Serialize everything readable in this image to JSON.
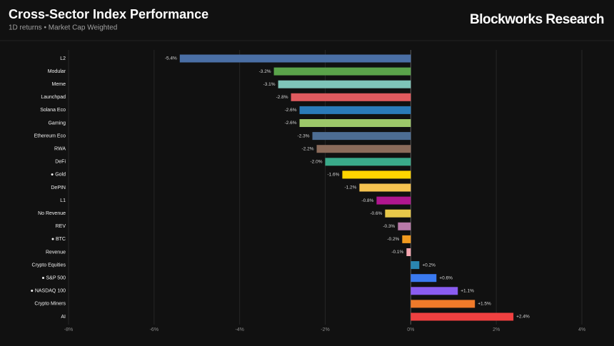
{
  "header": {
    "title": "Cross-Sector Index Performance",
    "subtitle": "1D returns • Market Cap Weighted",
    "brand": "Blockworks Research"
  },
  "chart_data": {
    "type": "bar",
    "orientation": "horizontal",
    "categories": [
      "L2",
      "Modular",
      "Meme",
      "Launchpad",
      "Solana Eco",
      "Gaming",
      "Ethereum Eco",
      "RWA",
      "DeFi",
      "● Gold",
      "DePIN",
      "L1",
      "No Revenue",
      "REV",
      "● BTC",
      "Revenue",
      "Crypto Equities",
      "● S&P 500",
      "● NASDAQ 100",
      "Crypto Miners",
      "AI"
    ],
    "values": [
      -5.4,
      -3.2,
      -3.1,
      -2.8,
      -2.6,
      -2.6,
      -2.3,
      -2.2,
      -2.0,
      -1.6,
      -1.2,
      -0.8,
      -0.6,
      -0.3,
      -0.2,
      -0.1,
      0.2,
      0.6,
      1.1,
      1.5,
      2.4
    ],
    "value_labels": [
      "-5.4%",
      "-3.2%",
      "-3.1%",
      "-2.8%",
      "-2.6%",
      "-2.6%",
      "-2.3%",
      "-2.2%",
      "-2.0%",
      "-1.6%",
      "-1.2%",
      "-0.8%",
      "-0.6%",
      "-0.3%",
      "-0.2%",
      "-0.1%",
      "+0.2%",
      "+0.6%",
      "+1.1%",
      "+1.5%",
      "+2.4%"
    ],
    "colors": [
      "#4a6fa5",
      "#5aa34a",
      "#7ec4b8",
      "#e05a5e",
      "#2a7ab8",
      "#9dc86a",
      "#4d6d93",
      "#8b6b5a",
      "#3aaa8a",
      "#ffd500",
      "#f5c350",
      "#b0168f",
      "#e8c84a",
      "#b87aa8",
      "#f29a1f",
      "#f4a6b0",
      "#2a85b0",
      "#3a7af0",
      "#8a5cf0",
      "#f07a2a",
      "#f04040"
    ],
    "xlim": [
      -8,
      4
    ],
    "xticks": [
      {
        "value": -8,
        "label": "-8%"
      },
      {
        "value": -6,
        "label": "-6%"
      },
      {
        "value": -4,
        "label": "-4%"
      },
      {
        "value": -2,
        "label": "-2%"
      },
      {
        "value": 0,
        "label": "0%"
      },
      {
        "value": 2,
        "label": "2%"
      },
      {
        "value": 4,
        "label": "4%"
      }
    ],
    "grid": true
  }
}
